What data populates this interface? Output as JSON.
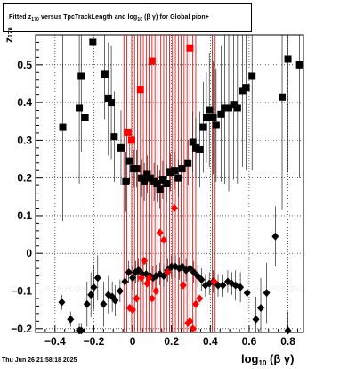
{
  "title": {
    "pre": "Fitted  z",
    "sub": "170",
    "mid": "  versus TpcTrackLength and log",
    "sub2": "10",
    "post": " (β  γ)  for Global pion+"
  },
  "axes": {
    "y_main": "z",
    "y_sub": "170",
    "x_main": "log",
    "x_sub": "10",
    "x_post": " (β γ)"
  },
  "timestamp": "Thu Jun 26 21:58:18 2025",
  "chart_data": {
    "type": "scatter",
    "xlim": [
      -0.5,
      0.88
    ],
    "ylim": [
      -0.21,
      0.58
    ],
    "x_ticks": [
      -0.4,
      -0.2,
      0,
      0.2,
      0.4,
      0.6,
      0.8
    ],
    "x_tick_labels": [
      "−0.4",
      "−0.2",
      "0",
      "0.2",
      "0.4",
      "0.6",
      "0.8"
    ],
    "y_ticks": [
      -0.2,
      -0.1,
      0,
      0.1,
      0.2,
      0.3,
      0.4,
      0.5
    ],
    "y_tick_labels": [
      "−0.2",
      "−0.1",
      "0",
      "0.1",
      "0.2",
      "0.3",
      "0.4",
      "0.5"
    ],
    "grid": true,
    "red_vertical_lines_x": [
      -0.045,
      -0.03,
      -0.005,
      0.01,
      0.025,
      0.04,
      0.055,
      0.07,
      0.085,
      0.1,
      0.115,
      0.13,
      0.145,
      0.16,
      0.175,
      0.19,
      0.205,
      0.22,
      0.235,
      0.25,
      0.265,
      0.28,
      0.295,
      0.31,
      0.325,
      0.41,
      0.425
    ],
    "series": [
      {
        "marker": "square",
        "color": "#000000",
        "points": [
          [
            -0.36,
            0.335,
            0.25
          ],
          [
            -0.275,
            0.385,
            0.2
          ],
          [
            -0.265,
            0.47,
            0.2
          ],
          [
            -0.245,
            0.36,
            0.25
          ],
          [
            -0.205,
            0.56,
            0.08
          ],
          [
            -0.145,
            0.475,
            0.12
          ],
          [
            -0.125,
            0.41,
            0.15
          ],
          [
            -0.11,
            0.4,
            0.15
          ],
          [
            -0.095,
            0.31,
            0.12
          ],
          [
            -0.06,
            0.28,
            0.1
          ],
          [
            -0.035,
            0.19,
            0.08
          ],
          [
            -0.015,
            0.245,
            0.06
          ],
          [
            0.005,
            0.225,
            0.05
          ],
          [
            0.02,
            0.225,
            0.05
          ],
          [
            0.045,
            0.2,
            0.05
          ],
          [
            0.06,
            0.19,
            0.05
          ],
          [
            0.075,
            0.21,
            0.05
          ],
          [
            0.09,
            0.2,
            0.05
          ],
          [
            0.11,
            0.19,
            0.05
          ],
          [
            0.125,
            0.185,
            0.05
          ],
          [
            0.14,
            0.17,
            0.05
          ],
          [
            0.155,
            0.195,
            0.05
          ],
          [
            0.175,
            0.185,
            0.05
          ],
          [
            0.195,
            0.215,
            0.05
          ],
          [
            0.215,
            0.22,
            0.05
          ],
          [
            0.235,
            0.2,
            0.05
          ],
          [
            0.255,
            0.225,
            0.05
          ],
          [
            0.285,
            0.24,
            0.06
          ],
          [
            0.31,
            0.295,
            0.08
          ],
          [
            0.325,
            0.28,
            0.08
          ],
          [
            0.345,
            0.275,
            0.1
          ],
          [
            0.365,
            0.335,
            0.12
          ],
          [
            0.38,
            0.36,
            0.12
          ],
          [
            0.395,
            0.38,
            0.15
          ],
          [
            0.415,
            0.36,
            0.15
          ],
          [
            0.43,
            0.34,
            0.15
          ],
          [
            0.455,
            0.37,
            0.18
          ],
          [
            0.475,
            0.385,
            0.2
          ],
          [
            0.495,
            0.385,
            0.22
          ],
          [
            0.52,
            0.395,
            0.2
          ],
          [
            0.54,
            0.385,
            0.2
          ],
          [
            0.565,
            0.43,
            0.2
          ],
          [
            0.585,
            0.44,
            0.22
          ],
          [
            0.615,
            0.47,
            0.25
          ],
          [
            0.77,
            0.415,
            0.3
          ],
          [
            0.8,
            0.515,
            0.3
          ],
          [
            0.86,
            0.5,
            0.3
          ]
        ]
      },
      {
        "marker": "square",
        "color": "#ff0000",
        "points": [
          [
            -0.025,
            0.32,
            0
          ],
          [
            -0.005,
            0.3,
            0
          ],
          [
            0.04,
            0.435,
            0
          ],
          [
            0.1,
            0.51,
            0
          ],
          [
            0.295,
            0.545,
            0
          ]
        ]
      },
      {
        "marker": "diamond",
        "color": "#000000",
        "points": [
          [
            -0.365,
            -0.13,
            0.02
          ],
          [
            -0.32,
            -0.175,
            0.02
          ],
          [
            -0.275,
            -0.205,
            0.02
          ],
          [
            -0.265,
            -0.205,
            0.02
          ],
          [
            -0.235,
            -0.135,
            0.06
          ],
          [
            -0.215,
            -0.11,
            0.06
          ],
          [
            -0.2,
            -0.09,
            0.06
          ],
          [
            -0.18,
            -0.065,
            0.06
          ],
          [
            -0.15,
            -0.135,
            0.06
          ],
          [
            -0.125,
            -0.11,
            0.05
          ],
          [
            -0.105,
            -0.115,
            0.04
          ],
          [
            -0.09,
            -0.125,
            0.04
          ],
          [
            -0.065,
            -0.1,
            0.03
          ],
          [
            -0.04,
            -0.075,
            0.03
          ],
          [
            -0.02,
            -0.05,
            0.03
          ],
          [
            0.0,
            -0.065,
            0.03
          ],
          [
            0.015,
            -0.05,
            0.03
          ],
          [
            0.03,
            -0.045,
            0.03
          ],
          [
            0.05,
            -0.055,
            0.03
          ],
          [
            0.07,
            -0.055,
            0.03
          ],
          [
            0.09,
            -0.06,
            0.03
          ],
          [
            0.105,
            -0.065,
            0.03
          ],
          [
            0.12,
            -0.06,
            0.03
          ],
          [
            0.14,
            -0.055,
            0.03
          ],
          [
            0.16,
            -0.06,
            0.03
          ],
          [
            0.18,
            -0.045,
            0.03
          ],
          [
            0.2,
            -0.035,
            0.03
          ],
          [
            0.22,
            -0.035,
            0.03
          ],
          [
            0.24,
            -0.04,
            0.03
          ],
          [
            0.255,
            -0.035,
            0.03
          ],
          [
            0.275,
            -0.045,
            0.03
          ],
          [
            0.295,
            -0.04,
            0.03
          ],
          [
            0.315,
            -0.05,
            0.03
          ],
          [
            0.335,
            -0.06,
            0.03
          ],
          [
            0.355,
            -0.07,
            0.03
          ],
          [
            0.375,
            -0.085,
            0.03
          ],
          [
            0.395,
            -0.08,
            0.03
          ],
          [
            0.415,
            -0.075,
            0.03
          ],
          [
            0.44,
            -0.085,
            0.03
          ],
          [
            0.465,
            -0.085,
            0.03
          ],
          [
            0.49,
            -0.075,
            0.03
          ],
          [
            0.51,
            -0.08,
            0.03
          ],
          [
            0.53,
            -0.085,
            0.04
          ],
          [
            0.555,
            -0.09,
            0.04
          ],
          [
            0.59,
            -0.105,
            0.05
          ],
          [
            0.635,
            -0.175,
            0.06
          ],
          [
            0.66,
            -0.145,
            0.08
          ],
          [
            0.69,
            -0.105,
            0.08
          ],
          [
            0.735,
            0.045,
            0.08
          ],
          [
            0.8,
            -0.205,
            0.05
          ]
        ]
      },
      {
        "marker": "diamond",
        "color": "#ff0000",
        "points": [
          [
            -0.045,
            0.62,
            0
          ],
          [
            -0.015,
            -0.145,
            0
          ],
          [
            0.0,
            -0.15,
            0
          ],
          [
            0.02,
            -0.12,
            0
          ],
          [
            0.045,
            -0.065,
            0
          ],
          [
            0.06,
            -0.02,
            0
          ],
          [
            0.075,
            -0.08,
            0
          ],
          [
            0.085,
            -0.065,
            0
          ],
          [
            0.1,
            -0.12,
            0
          ],
          [
            0.12,
            -0.1,
            0
          ],
          [
            0.14,
            0.055,
            0
          ],
          [
            0.16,
            0.035,
            0
          ],
          [
            0.18,
            -0.05,
            0
          ],
          [
            0.215,
            0.12,
            0
          ],
          [
            0.26,
            -0.085,
            0
          ],
          [
            0.285,
            -0.185,
            0
          ],
          [
            0.295,
            -0.18,
            0
          ],
          [
            0.31,
            -0.2,
            0
          ],
          [
            0.325,
            -0.135,
            0
          ],
          [
            0.345,
            -0.12,
            0
          ],
          [
            0.42,
            -0.075,
            0
          ]
        ]
      }
    ]
  }
}
